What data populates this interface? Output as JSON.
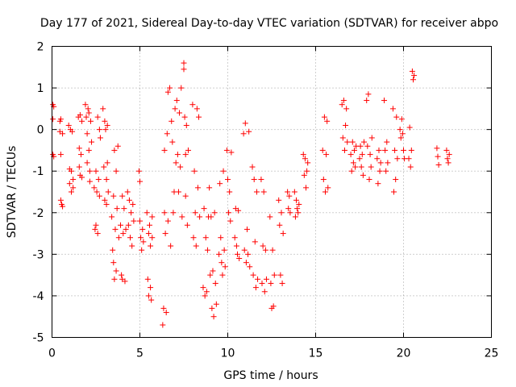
{
  "chart_data": {
    "type": "scatter",
    "title": "Day 177 of 2021, Sidereal Day-to-day VTEC variation (SDTVAR) for receiver abpo",
    "xlabel": "GPS time / hours",
    "ylabel": "SDTVAR / TECUs",
    "xlim": [
      0,
      25
    ],
    "ylim": [
      -5,
      2
    ],
    "xticks": [
      "0",
      "5",
      "10",
      "15",
      "20",
      "25"
    ],
    "yticks": [
      "2",
      "1",
      "0",
      "-1",
      "-2",
      "-3",
      "-4",
      "-5"
    ],
    "grid": true,
    "marker": "plus",
    "color": "#ff0000",
    "series": [
      {
        "name": "SDTVAR",
        "points": [
          [
            0.05,
            0.6
          ],
          [
            0.05,
            0.25
          ],
          [
            0.05,
            -0.6
          ],
          [
            0.1,
            0.55
          ],
          [
            0.1,
            -0.65
          ],
          [
            0.45,
            -0.05
          ],
          [
            0.45,
            0.2
          ],
          [
            0.5,
            -0.6
          ],
          [
            0.5,
            0.25
          ],
          [
            0.5,
            -1.7
          ],
          [
            0.55,
            -1.8
          ],
          [
            0.6,
            -0.1
          ],
          [
            0.6,
            -1.85
          ],
          [
            0.95,
            0.1
          ],
          [
            1.0,
            -0.95
          ],
          [
            1.0,
            -1.3
          ],
          [
            1.05,
            0.0
          ],
          [
            1.1,
            -1.0
          ],
          [
            1.1,
            -1.5
          ],
          [
            1.15,
            -0.05
          ],
          [
            1.2,
            -1.2
          ],
          [
            1.2,
            -1.4
          ],
          [
            1.5,
            0.3
          ],
          [
            1.55,
            -0.45
          ],
          [
            1.55,
            -0.9
          ],
          [
            1.6,
            0.35
          ],
          [
            1.6,
            -1.1
          ],
          [
            1.65,
            -0.6
          ],
          [
            1.7,
            0.2
          ],
          [
            1.7,
            -1.15
          ],
          [
            1.9,
            0.6
          ],
          [
            1.95,
            0.3
          ],
          [
            2.0,
            -0.1
          ],
          [
            2.0,
            -0.8
          ],
          [
            2.05,
            0.5
          ],
          [
            2.1,
            -0.5
          ],
          [
            2.1,
            0.4
          ],
          [
            2.15,
            -1.0
          ],
          [
            2.15,
            -1.25
          ],
          [
            2.2,
            0.2
          ],
          [
            2.25,
            -0.3
          ],
          [
            2.4,
            -1.4
          ],
          [
            2.45,
            -2.4
          ],
          [
            2.5,
            -1.0
          ],
          [
            2.5,
            -2.3
          ],
          [
            2.55,
            -1.5
          ],
          [
            2.6,
            -2.5
          ],
          [
            2.6,
            0.3
          ],
          [
            2.65,
            -1.2
          ],
          [
            2.7,
            0.0
          ],
          [
            2.7,
            -1.6
          ],
          [
            2.75,
            -0.2
          ],
          [
            2.9,
            0.5
          ],
          [
            2.95,
            -0.9
          ],
          [
            3.0,
            -1.7
          ],
          [
            3.0,
            0.2
          ],
          [
            3.05,
            0.0
          ],
          [
            3.1,
            -1.2
          ],
          [
            3.1,
            -1.8
          ],
          [
            3.15,
            -0.8
          ],
          [
            3.15,
            0.1
          ],
          [
            3.2,
            -1.5
          ],
          [
            3.4,
            -2.1
          ],
          [
            3.45,
            -2.9
          ],
          [
            3.5,
            -3.2
          ],
          [
            3.5,
            -1.6
          ],
          [
            3.55,
            -3.6
          ],
          [
            3.55,
            -0.5
          ],
          [
            3.6,
            -2.4
          ],
          [
            3.65,
            -1.0
          ],
          [
            3.65,
            -3.4
          ],
          [
            3.7,
            -1.9
          ],
          [
            3.75,
            -0.4
          ],
          [
            3.8,
            -2.6
          ],
          [
            3.9,
            -2.3
          ],
          [
            3.95,
            -3.5
          ],
          [
            4.0,
            -1.6
          ],
          [
            4.0,
            -3.6
          ],
          [
            4.05,
            -2.5
          ],
          [
            4.1,
            -1.9
          ],
          [
            4.15,
            -3.65
          ],
          [
            4.2,
            -2.4
          ],
          [
            4.3,
            -1.5
          ],
          [
            4.35,
            -2.3
          ],
          [
            4.4,
            -1.7
          ],
          [
            4.45,
            -2.6
          ],
          [
            4.5,
            -2.0
          ],
          [
            4.55,
            -2.8
          ],
          [
            4.6,
            -1.8
          ],
          [
            4.65,
            -2.2
          ],
          [
            4.95,
            -1.0
          ],
          [
            5.0,
            -2.2
          ],
          [
            5.0,
            -1.25
          ],
          [
            5.05,
            -2.6
          ],
          [
            5.1,
            -2.9
          ],
          [
            5.15,
            -2.4
          ],
          [
            5.2,
            -2.7
          ],
          [
            5.4,
            -2.0
          ],
          [
            5.45,
            -3.6
          ],
          [
            5.5,
            -2.5
          ],
          [
            5.5,
            -4.0
          ],
          [
            5.55,
            -2.3
          ],
          [
            5.6,
            -2.8
          ],
          [
            5.6,
            -3.8
          ],
          [
            5.65,
            -4.1
          ],
          [
            5.7,
            -2.1
          ],
          [
            5.7,
            -2.6
          ],
          [
            6.3,
            -4.7
          ],
          [
            6.35,
            -4.3
          ],
          [
            6.4,
            -2.0
          ],
          [
            6.4,
            -0.5
          ],
          [
            6.45,
            -2.5
          ],
          [
            6.5,
            -4.4
          ],
          [
            6.55,
            -0.1
          ],
          [
            6.6,
            0.9
          ],
          [
            6.6,
            -2.2
          ],
          [
            6.7,
            1.0
          ],
          [
            6.75,
            -2.8
          ],
          [
            6.8,
            0.2
          ],
          [
            6.85,
            -0.3
          ],
          [
            6.9,
            -2.0
          ],
          [
            6.95,
            -1.5
          ],
          [
            7.0,
            0.5
          ],
          [
            7.05,
            -0.8
          ],
          [
            7.1,
            0.7
          ],
          [
            7.15,
            -0.6
          ],
          [
            7.2,
            -1.5
          ],
          [
            7.25,
            0.4
          ],
          [
            7.3,
            -0.9
          ],
          [
            7.35,
            1.0
          ],
          [
            7.4,
            -2.1
          ],
          [
            7.5,
            1.6
          ],
          [
            7.5,
            1.45
          ],
          [
            7.55,
            0.3
          ],
          [
            7.6,
            -1.6
          ],
          [
            7.6,
            -0.6
          ],
          [
            7.65,
            0.1
          ],
          [
            7.7,
            -2.3
          ],
          [
            7.75,
            -0.5
          ],
          [
            8.0,
            0.6
          ],
          [
            8.05,
            -2.6
          ],
          [
            8.1,
            -1.0
          ],
          [
            8.15,
            -2.0
          ],
          [
            8.2,
            -2.8
          ],
          [
            8.25,
            0.5
          ],
          [
            8.3,
            -1.4
          ],
          [
            8.35,
            0.3
          ],
          [
            8.4,
            -2.1
          ],
          [
            8.6,
            -3.8
          ],
          [
            8.65,
            -1.9
          ],
          [
            8.7,
            -4.0
          ],
          [
            8.75,
            -2.6
          ],
          [
            8.8,
            -3.9
          ],
          [
            8.85,
            -2.9
          ],
          [
            8.9,
            -2.1
          ],
          [
            8.95,
            -1.4
          ],
          [
            9.0,
            -3.5
          ],
          [
            9.05,
            -2.1
          ],
          [
            9.1,
            -4.3
          ],
          [
            9.15,
            -3.4
          ],
          [
            9.2,
            -4.5
          ],
          [
            9.25,
            -2.0
          ],
          [
            9.3,
            -3.7
          ],
          [
            9.35,
            -4.2
          ],
          [
            9.5,
            -3.0
          ],
          [
            9.55,
            -1.3
          ],
          [
            9.6,
            -2.6
          ],
          [
            9.65,
            -3.2
          ],
          [
            9.7,
            -3.5
          ],
          [
            9.75,
            -1.0
          ],
          [
            9.8,
            -2.9
          ],
          [
            9.85,
            -3.3
          ],
          [
            9.95,
            -0.5
          ],
          [
            10.0,
            -1.2
          ],
          [
            10.05,
            -2.0
          ],
          [
            10.1,
            -1.5
          ],
          [
            10.15,
            -2.2
          ],
          [
            10.2,
            -0.55
          ],
          [
            10.4,
            -2.6
          ],
          [
            10.45,
            -1.9
          ],
          [
            10.5,
            -2.8
          ],
          [
            10.55,
            -3.0
          ],
          [
            10.6,
            -1.95
          ],
          [
            10.65,
            -3.1
          ],
          [
            10.9,
            -0.1
          ],
          [
            10.95,
            -2.9
          ],
          [
            11.0,
            0.15
          ],
          [
            11.05,
            -3.2
          ],
          [
            11.1,
            -2.4
          ],
          [
            11.15,
            -3.0
          ],
          [
            11.2,
            -0.05
          ],
          [
            11.25,
            -3.3
          ],
          [
            11.4,
            -0.9
          ],
          [
            11.45,
            -3.5
          ],
          [
            11.5,
            -1.2
          ],
          [
            11.55,
            -2.7
          ],
          [
            11.6,
            -3.8
          ],
          [
            11.65,
            -1.5
          ],
          [
            11.7,
            -3.6
          ],
          [
            11.9,
            -1.2
          ],
          [
            11.95,
            -3.7
          ],
          [
            12.0,
            -2.8
          ],
          [
            12.05,
            -1.5
          ],
          [
            12.1,
            -3.9
          ],
          [
            12.15,
            -2.9
          ],
          [
            12.2,
            -3.6
          ],
          [
            12.4,
            -2.1
          ],
          [
            12.45,
            -3.7
          ],
          [
            12.5,
            -4.3
          ],
          [
            12.55,
            -2.9
          ],
          [
            12.6,
            -4.25
          ],
          [
            12.65,
            -3.5
          ],
          [
            12.9,
            -1.7
          ],
          [
            12.95,
            -2.3
          ],
          [
            13.0,
            -3.5
          ],
          [
            13.05,
            -2.0
          ],
          [
            13.1,
            -3.7
          ],
          [
            13.15,
            -2.5
          ],
          [
            13.4,
            -1.5
          ],
          [
            13.45,
            -1.9
          ],
          [
            13.5,
            -1.6
          ],
          [
            13.55,
            -2.0
          ],
          [
            13.8,
            -1.5
          ],
          [
            13.85,
            -2.1
          ],
          [
            13.9,
            -1.7
          ],
          [
            13.95,
            -1.9
          ],
          [
            14.0,
            -2.0
          ],
          [
            14.05,
            -1.8
          ],
          [
            14.3,
            -0.6
          ],
          [
            14.35,
            -1.1
          ],
          [
            14.4,
            -0.7
          ],
          [
            14.45,
            -1.4
          ],
          [
            14.5,
            -1.0
          ],
          [
            14.55,
            -0.8
          ],
          [
            15.4,
            -0.5
          ],
          [
            15.45,
            -1.2
          ],
          [
            15.5,
            0.3
          ],
          [
            15.55,
            -1.5
          ],
          [
            15.6,
            -0.6
          ],
          [
            15.65,
            0.2
          ],
          [
            15.7,
            -1.4
          ],
          [
            16.5,
            0.6
          ],
          [
            16.55,
            -0.2
          ],
          [
            16.6,
            0.7
          ],
          [
            16.65,
            -0.5
          ],
          [
            16.7,
            0.1
          ],
          [
            16.75,
            0.5
          ],
          [
            16.8,
            -0.3
          ],
          [
            17.0,
            -0.6
          ],
          [
            17.05,
            -1.0
          ],
          [
            17.1,
            -0.3
          ],
          [
            17.15,
            -0.8
          ],
          [
            17.2,
            -0.5
          ],
          [
            17.25,
            -0.9
          ],
          [
            17.3,
            -0.4
          ],
          [
            17.5,
            -0.7
          ],
          [
            17.55,
            -0.4
          ],
          [
            17.6,
            -0.9
          ],
          [
            17.65,
            -0.6
          ],
          [
            17.7,
            -1.1
          ],
          [
            17.75,
            -0.3
          ],
          [
            17.9,
            0.7
          ],
          [
            17.95,
            -0.4
          ],
          [
            18.0,
            0.85
          ],
          [
            18.05,
            -1.2
          ],
          [
            18.1,
            -0.6
          ],
          [
            18.15,
            -0.9
          ],
          [
            18.2,
            -0.2
          ],
          [
            18.5,
            -0.7
          ],
          [
            18.55,
            -1.3
          ],
          [
            18.6,
            -0.5
          ],
          [
            18.65,
            -1.0
          ],
          [
            18.7,
            -0.8
          ],
          [
            18.9,
            0.7
          ],
          [
            18.95,
            -0.5
          ],
          [
            19.0,
            -1.0
          ],
          [
            19.05,
            -0.3
          ],
          [
            19.1,
            -0.8
          ],
          [
            19.4,
            0.5
          ],
          [
            19.45,
            -1.5
          ],
          [
            19.5,
            -0.5
          ],
          [
            19.55,
            -1.2
          ],
          [
            19.6,
            0.3
          ],
          [
            19.65,
            -0.7
          ],
          [
            19.8,
            0.0
          ],
          [
            19.85,
            -0.2
          ],
          [
            19.9,
            0.25
          ],
          [
            19.95,
            -0.1
          ],
          [
            20.0,
            -0.5
          ],
          [
            20.05,
            -0.7
          ],
          [
            20.3,
            -0.7
          ],
          [
            20.35,
            0.05
          ],
          [
            20.4,
            -0.9
          ],
          [
            20.45,
            -0.5
          ],
          [
            20.5,
            1.4
          ],
          [
            20.55,
            1.2
          ],
          [
            20.6,
            1.3
          ],
          [
            21.9,
            -0.45
          ],
          [
            21.95,
            -0.65
          ],
          [
            22.0,
            -0.85
          ],
          [
            22.45,
            -0.5
          ],
          [
            22.5,
            -0.7
          ],
          [
            22.55,
            -0.8
          ],
          [
            22.6,
            -0.6
          ]
        ]
      }
    ]
  }
}
